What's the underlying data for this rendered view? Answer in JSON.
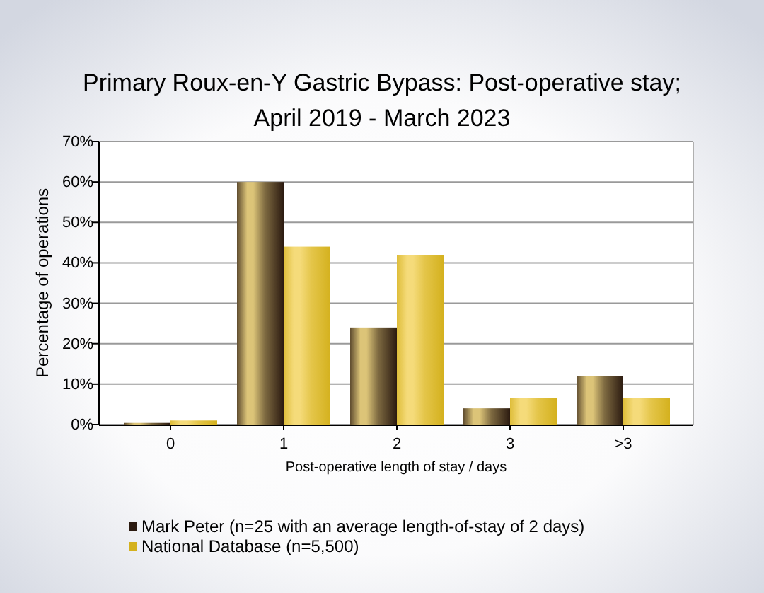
{
  "chart_data": {
    "type": "bar",
    "title": "Primary Roux-en-Y Gastric Bypass: Post-operative stay;\nApril 2019 - March 2023",
    "xlabel": "Post-operative length of stay / days",
    "ylabel": "Percentage of operations",
    "categories": [
      "0",
      "1",
      "2",
      "3",
      ">3"
    ],
    "series": [
      {
        "name": "Mark Peter (n=25 with an average length-of-stay of 2 days)",
        "color": "#2b1a10",
        "values": [
          0.4,
          60,
          24,
          4,
          12
        ]
      },
      {
        "name": "National Database (n=5,500)",
        "color": "#d4b11e",
        "values": [
          1,
          44,
          42,
          6.5,
          6.5
        ]
      }
    ],
    "ylim": [
      0,
      70
    ],
    "yticks": [
      {
        "value": 0,
        "label": "0%"
      },
      {
        "value": 10,
        "label": "10%"
      },
      {
        "value": 20,
        "label": "20%"
      },
      {
        "value": 30,
        "label": "30%"
      },
      {
        "value": 40,
        "label": "40%"
      },
      {
        "value": 50,
        "label": "50%"
      },
      {
        "value": 60,
        "label": "60%"
      },
      {
        "value": 70,
        "label": "70%"
      }
    ],
    "grid": "y",
    "legend": "bottom left"
  }
}
